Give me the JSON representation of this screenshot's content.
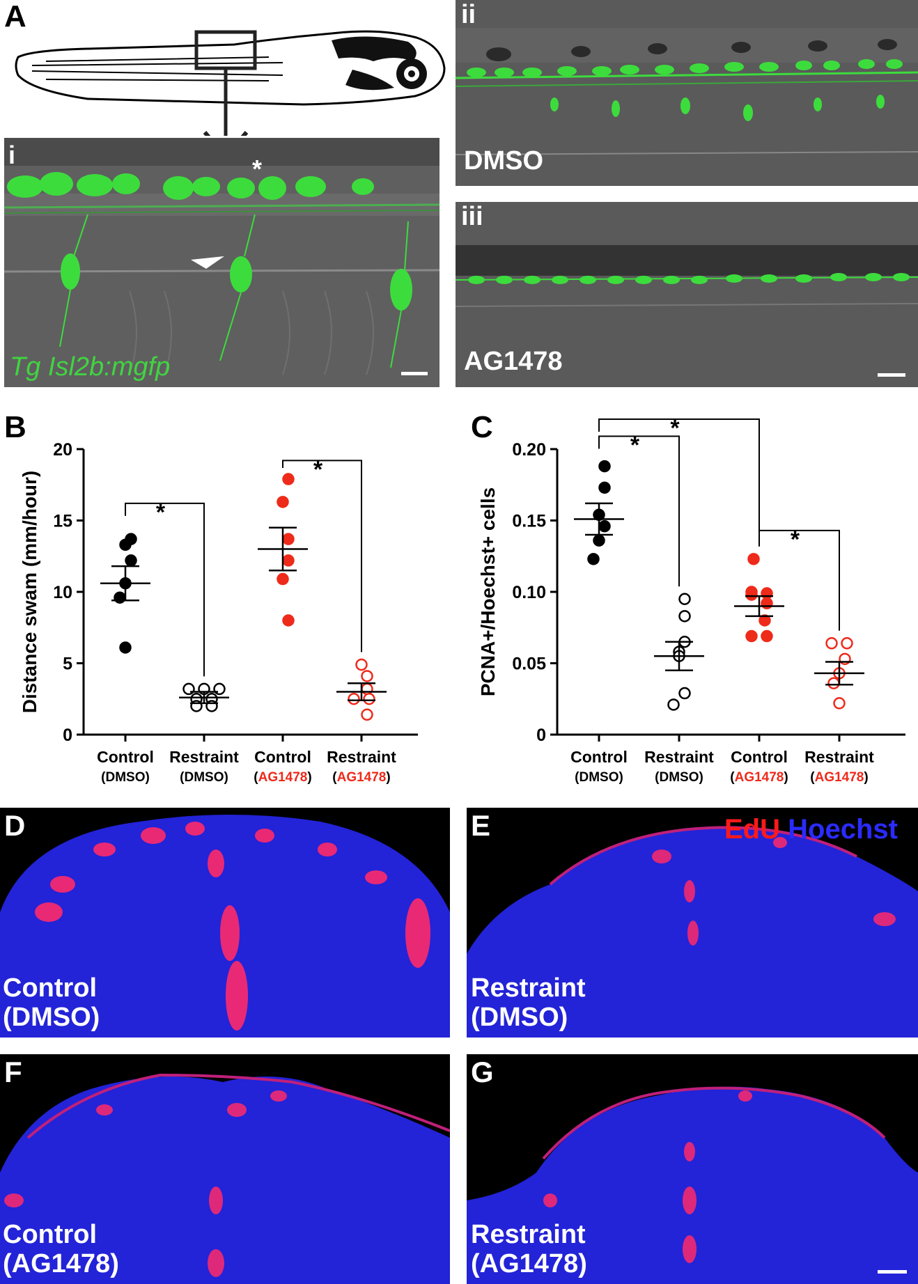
{
  "panels": {
    "A": "A",
    "B": "B",
    "C": "C",
    "D": "D",
    "E": "E",
    "F": "F",
    "G": "G"
  },
  "panelA": {
    "sub_i": "i",
    "sub_ii": "ii",
    "sub_iii": "iii",
    "transgene": "Tg Isl2b:mgfp",
    "asterisk": "*",
    "label_ii": "DMSO",
    "label_iii": "AG1478"
  },
  "panelD": {
    "line1": "Control",
    "line2": "(DMSO)"
  },
  "panelE": {
    "line1": "Restraint",
    "line2": "(DMSO)",
    "legend_edu": "EdU",
    "legend_hoechst": "Hoechst"
  },
  "panelF": {
    "line1": "Control",
    "line2": "(AG1478)"
  },
  "panelG": {
    "line1": "Restraint",
    "line2": "(AG1478)"
  },
  "colors": {
    "black": "#000000",
    "red": "#ee2a1a",
    "gfp": "#41d441",
    "edu": "#ff1a1a",
    "hoechst": "#2b2bff"
  },
  "chart_data": [
    {
      "id": "B",
      "type": "scatter",
      "ylabel": "Distance swam (mm/hour)",
      "ylim": [
        0,
        20
      ],
      "yticks": [
        0,
        5,
        10,
        15,
        20
      ],
      "categories": [
        {
          "line1": "Control",
          "paren_open": "(",
          "drug": "DMSO",
          "paren_close": ")",
          "drug_color": "#000000"
        },
        {
          "line1": "Restraint",
          "paren_open": "(",
          "drug": "DMSO",
          "paren_close": ")",
          "drug_color": "#000000"
        },
        {
          "line1": "Control",
          "paren_open": "(",
          "drug": "AG1478",
          "paren_close": ")",
          "drug_color": "#ee2a1a"
        },
        {
          "line1": "Restraint",
          "paren_open": "(",
          "drug": "AG1478",
          "paren_close": ")",
          "drug_color": "#ee2a1a"
        }
      ],
      "groups": [
        {
          "color": "#000000",
          "filled": true,
          "mean": 10.6,
          "sem": 1.2,
          "points": [
            13.7,
            13.3,
            12.2,
            10.6,
            9.6,
            6.1
          ]
        },
        {
          "color": "#000000",
          "filled": false,
          "mean": 2.6,
          "sem": 0.4,
          "points": [
            3.2,
            3.2,
            3.2,
            2.5,
            2.5,
            2.0,
            2.0
          ]
        },
        {
          "color": "#ee2a1a",
          "filled": true,
          "mean": 13.0,
          "sem": 1.5,
          "points": [
            17.9,
            16.3,
            13.7,
            12.2,
            10.9,
            8.0
          ]
        },
        {
          "color": "#ee2a1a",
          "filled": false,
          "mean": 3.0,
          "sem": 0.6,
          "points": [
            4.9,
            4.1,
            3.2,
            2.5,
            2.5,
            1.4
          ]
        }
      ],
      "significance": [
        {
          "from": 0,
          "to": 1,
          "level": 16.2,
          "label": "*"
        },
        {
          "from": 2,
          "to": 3,
          "level": 19.2,
          "label": "*"
        }
      ]
    },
    {
      "id": "C",
      "type": "scatter",
      "ylabel": "PCNA+/Hoechst+ cells",
      "ylim": [
        0,
        0.2
      ],
      "yticks": [
        0,
        0.05,
        0.1,
        0.15,
        0.2
      ],
      "ytick_labels": [
        "0",
        "0.05",
        "0.10",
        "0.15",
        "0.20"
      ],
      "categories": [
        {
          "line1": "Control",
          "paren_open": "(",
          "drug": "DMSO",
          "paren_close": ")",
          "drug_color": "#000000"
        },
        {
          "line1": "Restraint",
          "paren_open": "(",
          "drug": "DMSO",
          "paren_close": ")",
          "drug_color": "#000000"
        },
        {
          "line1": "Control",
          "paren_open": "(",
          "drug": "AG1478",
          "paren_close": ")",
          "drug_color": "#ee2a1a"
        },
        {
          "line1": "Restraint",
          "paren_open": "(",
          "drug": "AG1478",
          "paren_close": ")",
          "drug_color": "#ee2a1a"
        }
      ],
      "groups": [
        {
          "color": "#000000",
          "filled": true,
          "mean": 0.151,
          "sem": 0.011,
          "points": [
            0.188,
            0.173,
            0.154,
            0.146,
            0.136,
            0.123
          ]
        },
        {
          "color": "#000000",
          "filled": false,
          "mean": 0.055,
          "sem": 0.01,
          "points": [
            0.095,
            0.083,
            0.065,
            0.058,
            0.055,
            0.029,
            0.021
          ]
        },
        {
          "color": "#ee2a1a",
          "filled": true,
          "mean": 0.09,
          "sem": 0.007,
          "points": [
            0.123,
            0.1,
            0.099,
            0.098,
            0.092,
            0.08,
            0.069,
            0.069
          ]
        },
        {
          "color": "#ee2a1a",
          "filled": false,
          "mean": 0.043,
          "sem": 0.008,
          "points": [
            0.064,
            0.064,
            0.053,
            0.043,
            0.036,
            0.022
          ]
        }
      ],
      "significance": [
        {
          "from": 0,
          "to": 1,
          "level": 0.209,
          "label": "*"
        },
        {
          "from": 0,
          "to": 2,
          "level": 0.221,
          "label": "*"
        },
        {
          "from": 2,
          "to": 3,
          "level": 0.143,
          "label": "*"
        }
      ]
    }
  ]
}
